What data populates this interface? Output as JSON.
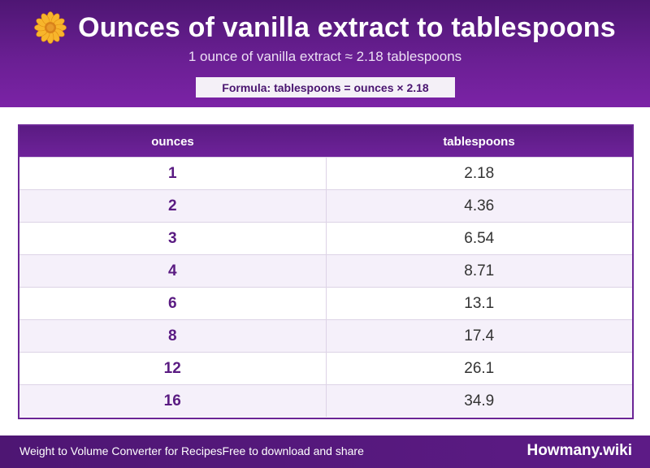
{
  "header": {
    "icon": "flower-icon",
    "title": "Ounces of vanilla extract to tablespoons",
    "subtitle": "1 ounce of vanilla extract ≈ 2.18 tablespoons",
    "formula": "Formula: tablespoons = ounces × 2.18"
  },
  "table": {
    "columns": [
      "ounces",
      "tablespoons"
    ],
    "rows": [
      {
        "ounces": "1",
        "tablespoons": "2.18"
      },
      {
        "ounces": "2",
        "tablespoons": "4.36"
      },
      {
        "ounces": "3",
        "tablespoons": "6.54"
      },
      {
        "ounces": "4",
        "tablespoons": "8.71"
      },
      {
        "ounces": "6",
        "tablespoons": "13.1"
      },
      {
        "ounces": "8",
        "tablespoons": "17.4"
      },
      {
        "ounces": "12",
        "tablespoons": "26.1"
      },
      {
        "ounces": "16",
        "tablespoons": "34.9"
      }
    ]
  },
  "footer": {
    "left_text": "Weight to Volume Converter for Recipes",
    "left_text_2": "Free to download and share",
    "brand": "Howmany.wiki"
  },
  "colors": {
    "primary": "#5a1b82",
    "row_alt": "#f5f0fa",
    "accent_flower": "#f5a623"
  }
}
